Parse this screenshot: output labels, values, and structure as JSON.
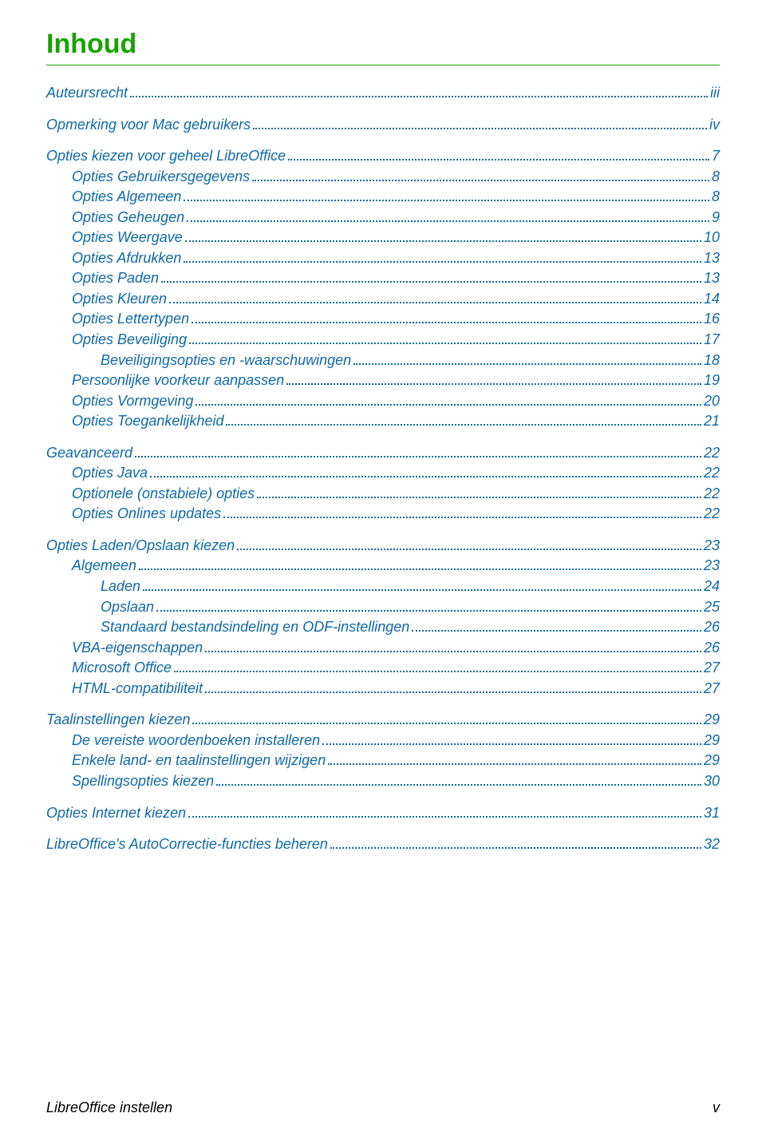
{
  "title": "Inhoud",
  "colors": {
    "heading": "#18a303",
    "toc": "#1069a8",
    "background": "#ffffff"
  },
  "toc": [
    {
      "level": 1,
      "label": "Auteursrecht",
      "page": "iii"
    },
    {
      "level": 1,
      "label": "Opmerking voor Mac gebruikers",
      "page": "iv"
    },
    {
      "level": 1,
      "label": "Opties kiezen voor geheel LibreOffice",
      "page": "7"
    },
    {
      "level": 2,
      "label": "Opties Gebruikersgegevens",
      "page": "8"
    },
    {
      "level": 2,
      "label": "Opties Algemeen",
      "page": "8"
    },
    {
      "level": 2,
      "label": "Opties Geheugen",
      "page": "9"
    },
    {
      "level": 2,
      "label": "Opties Weergave",
      "page": "10"
    },
    {
      "level": 2,
      "label": "Opties Afdrukken",
      "page": "13"
    },
    {
      "level": 2,
      "label": "Opties Paden",
      "page": "13"
    },
    {
      "level": 2,
      "label": "Opties Kleuren",
      "page": "14"
    },
    {
      "level": 2,
      "label": "Opties Lettertypen",
      "page": "16"
    },
    {
      "level": 2,
      "label": "Opties Beveiliging",
      "page": "17"
    },
    {
      "level": 3,
      "label": "Beveiligingsopties en -waarschuwingen",
      "page": "18"
    },
    {
      "level": 2,
      "label": "Persoonlijke voorkeur aanpassen",
      "page": "19"
    },
    {
      "level": 2,
      "label": "Opties Vormgeving",
      "page": "20"
    },
    {
      "level": 2,
      "label": "Opties Toegankelijkheid",
      "page": "21"
    },
    {
      "level": 1,
      "label": "Geavanceerd",
      "page": "22"
    },
    {
      "level": 2,
      "label": "Opties Java",
      "page": "22"
    },
    {
      "level": 2,
      "label": "Optionele (onstabiele) opties ",
      "page": "22"
    },
    {
      "level": 2,
      "label": "Opties Onlines updates",
      "page": "22"
    },
    {
      "level": 1,
      "label": "Opties Laden/Opslaan kiezen",
      "page": "23"
    },
    {
      "level": 2,
      "label": "Algemeen",
      "page": "23"
    },
    {
      "level": 3,
      "label": "Laden ",
      "page": "24"
    },
    {
      "level": 3,
      "label": "Opslaan ",
      "page": "25"
    },
    {
      "level": 3,
      "label": "Standaard bestandsindeling en ODF-instellingen",
      "page": "26"
    },
    {
      "level": 2,
      "label": "VBA-eigenschappen",
      "page": "26"
    },
    {
      "level": 2,
      "label": "Microsoft Office",
      "page": "27"
    },
    {
      "level": 2,
      "label": "HTML-compatibiliteit",
      "page": "27"
    },
    {
      "level": 1,
      "label": "Taalinstellingen kiezen",
      "page": "29"
    },
    {
      "level": 2,
      "label": "De vereiste woordenboeken installeren",
      "page": "29"
    },
    {
      "level": 2,
      "label": "Enkele land- en taalinstellingen wijzigen",
      "page": "29"
    },
    {
      "level": 2,
      "label": "Spellingsopties kiezen",
      "page": "30"
    },
    {
      "level": 1,
      "label": "Opties Internet kiezen",
      "page": "31"
    },
    {
      "level": 1,
      "label": "LibreOffice's AutoCorrectie-functies beheren",
      "page": "32"
    }
  ],
  "footer": {
    "left": "LibreOffice instellen",
    "right": "v"
  }
}
